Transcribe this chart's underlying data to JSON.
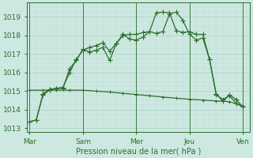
{
  "xlabel": "Pression niveau de la mer( hPa )",
  "bg_color": "#cce8e0",
  "grid_color_major": "#a8cfc4",
  "grid_color_minor": "#b8d8d0",
  "line_color": "#2d6e2d",
  "ylim": [
    1012.8,
    1019.6
  ],
  "xlim": [
    -0.2,
    16.5
  ],
  "xtick_labels": [
    "Mar",
    "Sam",
    "Mer",
    "Jeu",
    "Ven"
  ],
  "xtick_positions": [
    0,
    4,
    8,
    12,
    16
  ],
  "ytick_positions": [
    1013,
    1014,
    1015,
    1016,
    1017,
    1018,
    1019
  ],
  "line1_x": [
    0,
    0.5,
    1,
    1.5,
    2,
    2.5,
    3,
    3.5,
    4,
    4.5,
    5,
    5.5,
    6,
    6.5,
    7,
    7.5,
    8,
    8.5,
    9,
    9.5,
    10,
    10.5,
    11,
    11.5,
    12,
    12.5,
    13,
    13.5,
    14,
    14.5,
    15,
    15.5,
    16
  ],
  "line1_y": [
    1013.35,
    1013.45,
    1014.85,
    1015.1,
    1015.15,
    1015.15,
    1016.2,
    1016.65,
    1017.25,
    1017.1,
    1017.2,
    1017.35,
    1016.65,
    1017.55,
    1018.05,
    1017.8,
    1017.75,
    1017.9,
    1018.2,
    1018.1,
    1018.2,
    1019.15,
    1019.25,
    1018.8,
    1018.05,
    1017.75,
    1017.85,
    1016.7,
    1014.85,
    1014.45,
    1014.8,
    1014.55,
    1014.15
  ],
  "line2_x": [
    0,
    0.5,
    1,
    1.5,
    2,
    2.5,
    3,
    3.5,
    4,
    4.5,
    5,
    5.5,
    6,
    6.5,
    7,
    7.5,
    8,
    8.5,
    9,
    9.5,
    10,
    10.5,
    11,
    11.5,
    12,
    12.5,
    13,
    13.5,
    14,
    14.5,
    15,
    15.5,
    16
  ],
  "line2_y": [
    1013.35,
    1013.45,
    1014.8,
    1015.05,
    1015.15,
    1015.2,
    1016.0,
    1016.7,
    1017.2,
    1017.35,
    1017.45,
    1017.6,
    1017.15,
    1017.55,
    1018.0,
    1018.05,
    1018.05,
    1018.15,
    1018.2,
    1019.2,
    1019.25,
    1019.2,
    1018.25,
    1018.15,
    1018.2,
    1018.05,
    1018.05,
    1016.7,
    1014.8,
    1014.55,
    1014.75,
    1014.35,
    1014.15
  ],
  "line3_x": [
    0,
    1,
    2,
    3,
    4,
    5,
    6,
    7,
    8,
    9,
    10,
    11,
    12,
    13,
    14,
    15,
    16
  ],
  "line3_y": [
    1015.05,
    1015.05,
    1015.05,
    1015.05,
    1015.05,
    1015.0,
    1014.95,
    1014.88,
    1014.82,
    1014.75,
    1014.68,
    1014.62,
    1014.56,
    1014.52,
    1014.47,
    1014.43,
    1014.2
  ],
  "marker_size": 2.5,
  "linewidth": 0.9
}
